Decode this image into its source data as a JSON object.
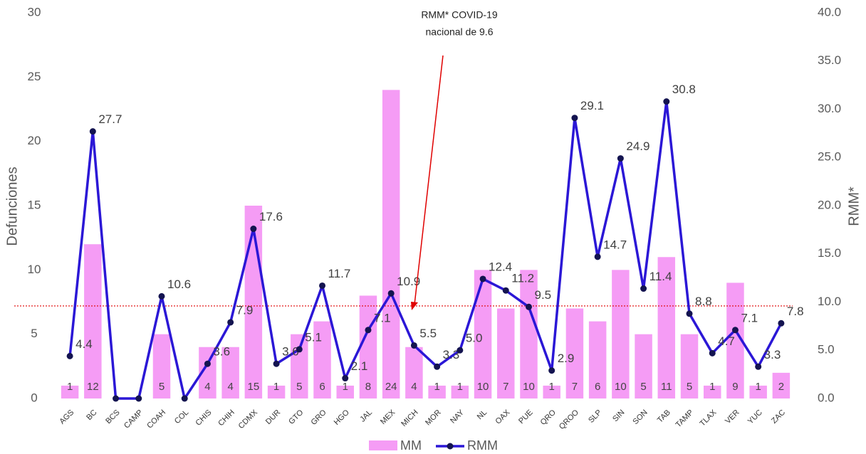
{
  "chart_data": {
    "type": "bar_line",
    "categories": [
      "AGS",
      "BC",
      "BCS",
      "CAMP",
      "COAH",
      "COL",
      "CHIS",
      "CHIH",
      "CDMX",
      "DUR",
      "GTO",
      "GRO",
      "HGO",
      "JAL",
      "MEX",
      "MICH",
      "MOR",
      "NAY",
      "NL",
      "OAX",
      "PUE",
      "QRO",
      "QROO",
      "SLP",
      "SIN",
      "SON",
      "TAB",
      "TAMP",
      "TLAX",
      "VER",
      "YUC",
      "ZAC"
    ],
    "series": [
      {
        "name": "MM",
        "type": "bar",
        "color": "#f59cf5",
        "values": [
          1,
          12,
          0,
          0,
          5,
          0,
          4,
          4,
          15,
          1,
          5,
          6,
          1,
          8,
          24,
          4,
          1,
          1,
          10,
          7,
          10,
          1,
          7,
          6,
          10,
          5,
          11,
          5,
          1,
          9,
          1,
          2
        ]
      },
      {
        "name": "RMM",
        "type": "line",
        "axis": "y2",
        "color": "#2b17d6",
        "values": [
          4.4,
          27.7,
          0,
          0,
          10.6,
          0,
          3.6,
          7.9,
          17.6,
          3.6,
          5.1,
          11.7,
          2.1,
          7.1,
          10.9,
          5.5,
          3.3,
          5.0,
          12.4,
          11.2,
          9.5,
          2.9,
          29.1,
          14.7,
          24.9,
          11.4,
          30.8,
          8.8,
          4.7,
          7.1,
          3.3,
          7.8
        ],
        "value_labels": [
          "4.4",
          "27.7",
          null,
          null,
          "10.6",
          null,
          "3.6",
          "7.9",
          "17.6",
          "3.6",
          "5.1",
          "11.7",
          "2.1",
          "7.1",
          "10.9",
          "5.5",
          "3.3",
          "5.0",
          "12.4",
          "11.2",
          "9.5",
          "2.9",
          "29.1",
          "14.7",
          "24.9",
          "11.4",
          "30.8",
          "8.8",
          "4.7",
          "7.1",
          "3.3",
          "7.8"
        ]
      }
    ],
    "ylabel": "Defunciones",
    "y2label": "RMM*",
    "ylim": [
      0,
      30
    ],
    "yticks": [
      0,
      5,
      10,
      15,
      20,
      25,
      30
    ],
    "y2lim": [
      0,
      40
    ],
    "y2ticks": [
      {
        "value": 0,
        "label": "0.0"
      },
      {
        "value": 5,
        "label": "5.0"
      },
      {
        "value": 10,
        "label": "10.0"
      },
      {
        "value": 15,
        "label": "15.0"
      },
      {
        "value": 20,
        "label": "20.0"
      },
      {
        "value": 25,
        "label": "25.0"
      },
      {
        "value": 30,
        "label": "30.0"
      },
      {
        "value": 35,
        "label": "35.0"
      },
      {
        "value": 40,
        "label": "40.0"
      }
    ],
    "reference_line": {
      "value": 9.6,
      "axis": "y2",
      "color": "#e00000"
    },
    "annotation": [
      "RMM* COVID-19",
      "nacional de 9.6"
    ]
  }
}
